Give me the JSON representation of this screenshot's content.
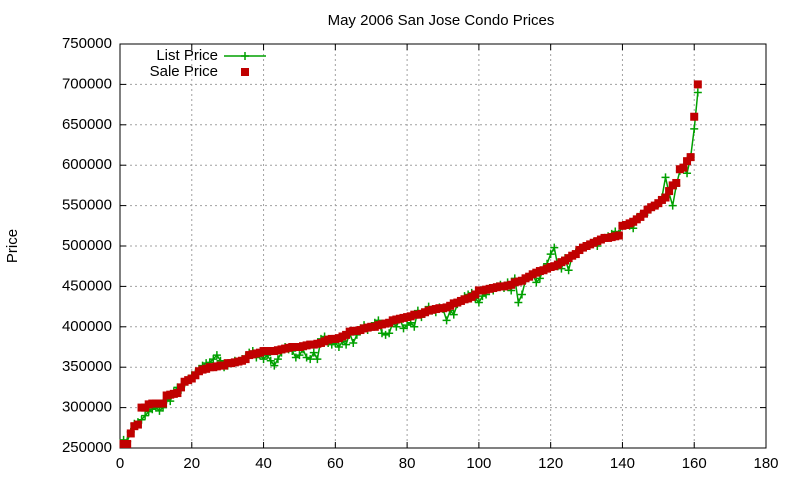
{
  "chart_data": {
    "type": "line",
    "title": "May 2006 San Jose Condo Prices",
    "y_label": "Price",
    "x": [
      1,
      2,
      3,
      4,
      5,
      6,
      7,
      8,
      9,
      10,
      11,
      12,
      13,
      14,
      15,
      16,
      17,
      18,
      19,
      20,
      21,
      22,
      23,
      24,
      25,
      26,
      27,
      28,
      29,
      30,
      31,
      32,
      33,
      34,
      35,
      36,
      37,
      38,
      39,
      40,
      41,
      42,
      43,
      44,
      45,
      46,
      47,
      48,
      49,
      50,
      51,
      52,
      53,
      54,
      55,
      56,
      57,
      58,
      59,
      60,
      61,
      62,
      63,
      64,
      65,
      66,
      67,
      68,
      69,
      70,
      71,
      72,
      73,
      74,
      75,
      76,
      77,
      78,
      79,
      80,
      81,
      82,
      83,
      84,
      85,
      86,
      87,
      88,
      89,
      90,
      91,
      92,
      93,
      94,
      95,
      96,
      97,
      98,
      99,
      100,
      101,
      102,
      103,
      104,
      105,
      106,
      107,
      108,
      109,
      110,
      111,
      112,
      113,
      114,
      115,
      116,
      117,
      118,
      119,
      120,
      121,
      122,
      123,
      124,
      125,
      126,
      127,
      128,
      129,
      130,
      131,
      132,
      133,
      134,
      135,
      136,
      137,
      138,
      139,
      140,
      141,
      142,
      143,
      144,
      145,
      146,
      147,
      148,
      149,
      150,
      151,
      152,
      153,
      154,
      155,
      156,
      157,
      158,
      159,
      160,
      161
    ],
    "series": [
      {
        "name": "List Price",
        "color": "#00a000",
        "style": "linespoints",
        "values": [
          260000,
          258000,
          270000,
          280000,
          282000,
          285000,
          290000,
          295000,
          298000,
          300000,
          296000,
          300000,
          310000,
          308000,
          320000,
          325000,
          322000,
          330000,
          335000,
          340000,
          342000,
          348000,
          352000,
          355000,
          356000,
          360000,
          365000,
          358000,
          350000,
          352000,
          355000,
          358000,
          357000,
          360000,
          362000,
          368000,
          370000,
          362000,
          365000,
          360000,
          365000,
          358000,
          352000,
          360000,
          368000,
          375000,
          372000,
          370000,
          362000,
          365000,
          372000,
          362000,
          360000,
          368000,
          360000,
          385000,
          388000,
          380000,
          378000,
          380000,
          375000,
          382000,
          378000,
          392000,
          380000,
          390000,
          398000,
          402000,
          396000,
          400000,
          405000,
          408000,
          392000,
          390000,
          392000,
          405000,
          400000,
          410000,
          398000,
          402000,
          405000,
          400000,
          420000,
          412000,
          418000,
          425000,
          420000,
          418000,
          424000,
          422000,
          408000,
          420000,
          415000,
          428000,
          432000,
          438000,
          440000,
          442000,
          435000,
          430000,
          438000,
          440000,
          448000,
          445000,
          450000,
          452000,
          448000,
          455000,
          445000,
          460000,
          430000,
          440000,
          458000,
          462000,
          465000,
          455000,
          460000,
          472000,
          478000,
          490000,
          498000,
          475000,
          472000,
          485000,
          470000,
          488000,
          492000,
          495000,
          498000,
          500000,
          502000,
          505000,
          500000,
          508000,
          510000,
          512000,
          515000,
          518000,
          515000,
          525000,
          526000,
          525000,
          522000,
          535000,
          538000,
          540000,
          542000,
          548000,
          550000,
          552000,
          560000,
          585000,
          565000,
          550000,
          575000,
          593000,
          597000,
          590000,
          610000,
          645000,
          690000
        ]
      },
      {
        "name": "Sale Price",
        "color": "#c00000",
        "style": "points",
        "values": [
          255000,
          255000,
          268000,
          277000,
          279000,
          300000,
          300000,
          304000,
          305000,
          305000,
          305000,
          305000,
          315000,
          316000,
          317000,
          318000,
          325000,
          332000,
          334000,
          336000,
          340000,
          345000,
          347000,
          348000,
          350000,
          350000,
          351000,
          352000,
          352000,
          355000,
          355000,
          356000,
          357000,
          358000,
          360000,
          365000,
          366000,
          367000,
          368000,
          370000,
          370000,
          370000,
          370000,
          371000,
          372000,
          373000,
          374000,
          375000,
          375000,
          375000,
          376000,
          377000,
          378000,
          378000,
          379000,
          380000,
          382000,
          384000,
          385000,
          385000,
          386000,
          388000,
          390000,
          394000,
          395000,
          395000,
          396000,
          398000,
          399000,
          400000,
          400000,
          402000,
          403000,
          404000,
          405000,
          408000,
          409000,
          410000,
          411000,
          412000,
          413000,
          415000,
          415000,
          416000,
          418000,
          420000,
          421000,
          422000,
          423000,
          423000,
          424000,
          426000,
          429000,
          430000,
          432000,
          434000,
          435000,
          437000,
          440000,
          445000,
          445000,
          446000,
          447000,
          448000,
          449000,
          450000,
          450000,
          451000,
          452000,
          455000,
          456000,
          457000,
          460000,
          462000,
          465000,
          467000,
          469000,
          470000,
          472000,
          474000,
          475000,
          477000,
          480000,
          482000,
          485000,
          488000,
          490000,
          495000,
          498000,
          500000,
          502000,
          504000,
          506000,
          508000,
          510000,
          510000,
          511000,
          512000,
          513000,
          525000,
          526000,
          528000,
          530000,
          533000,
          536000,
          540000,
          545000,
          548000,
          550000,
          553000,
          557000,
          560000,
          568000,
          575000,
          578000,
          595000,
          597000,
          605000,
          610000,
          660000,
          700000
        ]
      }
    ],
    "xlim": [
      0,
      180
    ],
    "xticks": [
      0,
      20,
      40,
      60,
      80,
      100,
      120,
      140,
      160,
      180
    ],
    "ylim": [
      250000,
      750000
    ],
    "yticks": [
      250000,
      300000,
      350000,
      400000,
      450000,
      500000,
      550000,
      600000,
      650000,
      700000,
      750000
    ],
    "grid": true,
    "legend": "top-left"
  }
}
